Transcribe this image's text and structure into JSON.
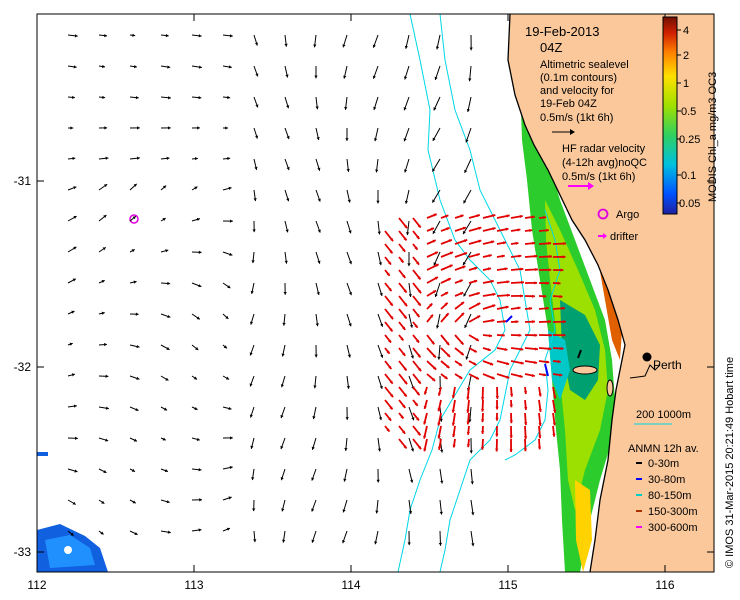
{
  "map": {
    "date": "19-Feb-2013",
    "time": "04Z",
    "sealevel_desc": [
      "Altimetric sealevel",
      "(0.1m contours)",
      "and velocity for",
      "19-Feb 04Z"
    ],
    "sealevel_scale": "0.5m/s (1kt 6h)",
    "hf_radar_desc": [
      "HF radar velocity",
      "(4-12h avg)noQC"
    ],
    "hf_radar_scale": "0.5m/s (1kt 6h)",
    "argo_label": "Argo",
    "drifter_label": "drifter",
    "city": "Perth",
    "bathy_label": "200  1000m",
    "anmn": {
      "title": "ANMN 12h av.",
      "items": [
        {
          "label": "0-30m",
          "color": "#000000"
        },
        {
          "label": "30-80m",
          "color": "#0000ff"
        },
        {
          "label": "80-150m",
          "color": "#00cccc"
        },
        {
          "label": "150-300m",
          "color": "#aa3300"
        },
        {
          "label": "300-600m",
          "color": "#ff00ff"
        }
      ]
    },
    "colorbar": {
      "title": "MODIS Chl_a mg/m3 OC3",
      "ticks": [
        "4",
        "2",
        "1",
        "0.5",
        "0.25",
        "0.1",
        "0.05"
      ]
    },
    "credit": "© IMOS 31-Mar-2015 20:21:49 Hobart time",
    "x_ticks": [
      "112",
      "113",
      "114",
      "115",
      "116"
    ],
    "y_ticks": [
      "-31",
      "-32",
      "-33"
    ],
    "colors": {
      "land": "#fac89b",
      "bathy": "#00d6e6",
      "hf": "#e00000",
      "argo": "#e000e0"
    }
  }
}
